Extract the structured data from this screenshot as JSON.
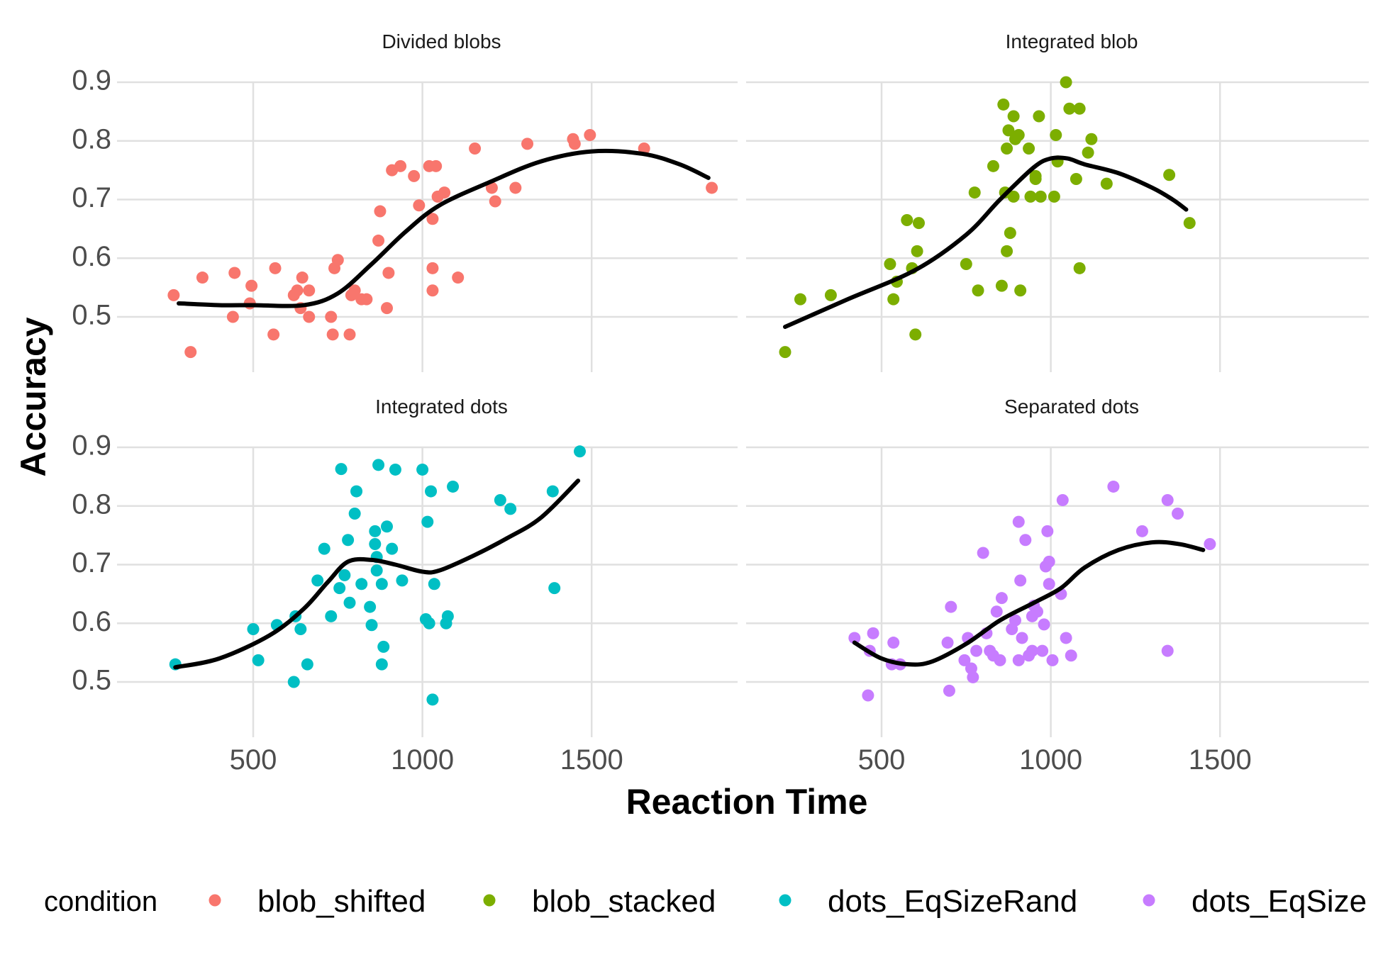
{
  "chart_data": {
    "type": "scatter",
    "xlabel": "Reaction Time",
    "ylabel": "Accuracy",
    "x_ticks": [
      500,
      1000,
      1500
    ],
    "y_ticks": [
      0.5,
      0.6,
      0.7,
      0.8,
      0.9
    ],
    "xlim": [
      100,
      2000
    ],
    "ylim": [
      0.42,
      0.93
    ],
    "grid": true,
    "legend_position": "bottom",
    "legend_title": "condition",
    "legend": [
      {
        "label": "blob_shifted",
        "color": "#F8766D"
      },
      {
        "label": "blob_stacked",
        "color": "#7CAE00"
      },
      {
        "label": "dots_EqSizeRand",
        "color": "#00BFC4"
      },
      {
        "label": "dots_EqSize",
        "color": "#C77CFF"
      }
    ],
    "panels": [
      {
        "title": "Divided blobs",
        "color": "#F8766D",
        "points": [
          [
            265,
            0.537
          ],
          [
            315,
            0.44
          ],
          [
            350,
            0.567
          ],
          [
            440,
            0.5
          ],
          [
            445,
            0.575
          ],
          [
            495,
            0.553
          ],
          [
            490,
            0.523
          ],
          [
            560,
            0.47
          ],
          [
            565,
            0.583
          ],
          [
            620,
            0.537
          ],
          [
            630,
            0.545
          ],
          [
            645,
            0.567
          ],
          [
            640,
            0.515
          ],
          [
            665,
            0.545
          ],
          [
            665,
            0.5
          ],
          [
            730,
            0.5
          ],
          [
            735,
            0.47
          ],
          [
            740,
            0.583
          ],
          [
            750,
            0.597
          ],
          [
            785,
            0.47
          ],
          [
            790,
            0.537
          ],
          [
            800,
            0.545
          ],
          [
            820,
            0.53
          ],
          [
            835,
            0.53
          ],
          [
            870,
            0.63
          ],
          [
            875,
            0.68
          ],
          [
            895,
            0.515
          ],
          [
            900,
            0.575
          ],
          [
            910,
            0.75
          ],
          [
            935,
            0.757
          ],
          [
            975,
            0.74
          ],
          [
            990,
            0.69
          ],
          [
            1020,
            0.757
          ],
          [
            1030,
            0.667
          ],
          [
            1030,
            0.583
          ],
          [
            1030,
            0.545
          ],
          [
            1040,
            0.757
          ],
          [
            1045,
            0.705
          ],
          [
            1065,
            0.712
          ],
          [
            1105,
            0.567
          ],
          [
            1155,
            0.787
          ],
          [
            1205,
            0.72
          ],
          [
            1215,
            0.697
          ],
          [
            1275,
            0.72
          ],
          [
            1310,
            0.795
          ],
          [
            1445,
            0.803
          ],
          [
            1450,
            0.795
          ],
          [
            1495,
            0.81
          ],
          [
            1655,
            0.787
          ],
          [
            1855,
            0.72
          ]
        ],
        "smooth": [
          [
            280,
            0.523
          ],
          [
            400,
            0.52
          ],
          [
            500,
            0.52
          ],
          [
            650,
            0.52
          ],
          [
            750,
            0.54
          ],
          [
            850,
            0.59
          ],
          [
            950,
            0.645
          ],
          [
            1050,
            0.69
          ],
          [
            1200,
            0.73
          ],
          [
            1350,
            0.765
          ],
          [
            1500,
            0.782
          ],
          [
            1650,
            0.778
          ],
          [
            1760,
            0.76
          ],
          [
            1845,
            0.737
          ]
        ]
      },
      {
        "title": "Integrated blob",
        "color": "#7CAE00",
        "points": [
          [
            215,
            0.44
          ],
          [
            260,
            0.53
          ],
          [
            350,
            0.537
          ],
          [
            525,
            0.59
          ],
          [
            535,
            0.53
          ],
          [
            545,
            0.56
          ],
          [
            575,
            0.665
          ],
          [
            590,
            0.583
          ],
          [
            600,
            0.47
          ],
          [
            605,
            0.612
          ],
          [
            610,
            0.66
          ],
          [
            750,
            0.59
          ],
          [
            775,
            0.712
          ],
          [
            785,
            0.545
          ],
          [
            830,
            0.757
          ],
          [
            855,
            0.553
          ],
          [
            860,
            0.862
          ],
          [
            865,
            0.712
          ],
          [
            870,
            0.612
          ],
          [
            870,
            0.787
          ],
          [
            875,
            0.818
          ],
          [
            880,
            0.643
          ],
          [
            890,
            0.705
          ],
          [
            890,
            0.842
          ],
          [
            895,
            0.803
          ],
          [
            905,
            0.81
          ],
          [
            910,
            0.545
          ],
          [
            935,
            0.787
          ],
          [
            940,
            0.705
          ],
          [
            955,
            0.735
          ],
          [
            955,
            0.74
          ],
          [
            965,
            0.842
          ],
          [
            970,
            0.705
          ],
          [
            1010,
            0.705
          ],
          [
            1015,
            0.81
          ],
          [
            1020,
            0.765
          ],
          [
            1045,
            0.9
          ],
          [
            1055,
            0.855
          ],
          [
            1075,
            0.735
          ],
          [
            1085,
            0.855
          ],
          [
            1085,
            0.583
          ],
          [
            1110,
            0.78
          ],
          [
            1120,
            0.803
          ],
          [
            1165,
            0.727
          ],
          [
            1350,
            0.742
          ],
          [
            1410,
            0.66
          ]
        ],
        "smooth": [
          [
            215,
            0.483
          ],
          [
            400,
            0.53
          ],
          [
            600,
            0.58
          ],
          [
            750,
            0.64
          ],
          [
            850,
            0.7
          ],
          [
            950,
            0.755
          ],
          [
            1000,
            0.77
          ],
          [
            1050,
            0.77
          ],
          [
            1100,
            0.76
          ],
          [
            1200,
            0.745
          ],
          [
            1300,
            0.72
          ],
          [
            1360,
            0.7
          ],
          [
            1400,
            0.683
          ]
        ]
      },
      {
        "title": "Integrated dots",
        "color": "#00BFC4",
        "points": [
          [
            270,
            0.53
          ],
          [
            500,
            0.59
          ],
          [
            515,
            0.537
          ],
          [
            570,
            0.597
          ],
          [
            620,
            0.5
          ],
          [
            625,
            0.612
          ],
          [
            640,
            0.59
          ],
          [
            660,
            0.53
          ],
          [
            690,
            0.673
          ],
          [
            710,
            0.727
          ],
          [
            730,
            0.612
          ],
          [
            755,
            0.66
          ],
          [
            760,
            0.863
          ],
          [
            770,
            0.682
          ],
          [
            780,
            0.742
          ],
          [
            785,
            0.635
          ],
          [
            800,
            0.787
          ],
          [
            805,
            0.825
          ],
          [
            820,
            0.667
          ],
          [
            845,
            0.628
          ],
          [
            850,
            0.597
          ],
          [
            860,
            0.757
          ],
          [
            860,
            0.735
          ],
          [
            865,
            0.713
          ],
          [
            865,
            0.69
          ],
          [
            870,
            0.87
          ],
          [
            880,
            0.667
          ],
          [
            880,
            0.53
          ],
          [
            885,
            0.56
          ],
          [
            895,
            0.765
          ],
          [
            910,
            0.727
          ],
          [
            920,
            0.862
          ],
          [
            940,
            0.673
          ],
          [
            1000,
            0.862
          ],
          [
            1010,
            0.607
          ],
          [
            1015,
            0.773
          ],
          [
            1020,
            0.6
          ],
          [
            1025,
            0.825
          ],
          [
            1030,
            0.47
          ],
          [
            1035,
            0.667
          ],
          [
            1070,
            0.6
          ],
          [
            1075,
            0.612
          ],
          [
            1090,
            0.833
          ],
          [
            1230,
            0.81
          ],
          [
            1260,
            0.795
          ],
          [
            1385,
            0.825
          ],
          [
            1390,
            0.66
          ],
          [
            1465,
            0.893
          ]
        ],
        "smooth": [
          [
            270,
            0.525
          ],
          [
            400,
            0.54
          ],
          [
            550,
            0.58
          ],
          [
            650,
            0.625
          ],
          [
            720,
            0.67
          ],
          [
            780,
            0.705
          ],
          [
            850,
            0.708
          ],
          [
            920,
            0.7
          ],
          [
            1000,
            0.688
          ],
          [
            1050,
            0.69
          ],
          [
            1150,
            0.715
          ],
          [
            1250,
            0.745
          ],
          [
            1350,
            0.78
          ],
          [
            1460,
            0.843
          ]
        ]
      },
      {
        "title": "Separated dots",
        "color": "#C77CFF",
        "points": [
          [
            420,
            0.575
          ],
          [
            460,
            0.477
          ],
          [
            465,
            0.553
          ],
          [
            475,
            0.583
          ],
          [
            530,
            0.53
          ],
          [
            535,
            0.567
          ],
          [
            555,
            0.53
          ],
          [
            695,
            0.567
          ],
          [
            700,
            0.485
          ],
          [
            705,
            0.628
          ],
          [
            745,
            0.537
          ],
          [
            755,
            0.575
          ],
          [
            765,
            0.523
          ],
          [
            770,
            0.508
          ],
          [
            780,
            0.553
          ],
          [
            800,
            0.72
          ],
          [
            810,
            0.583
          ],
          [
            820,
            0.553
          ],
          [
            830,
            0.545
          ],
          [
            840,
            0.62
          ],
          [
            850,
            0.537
          ],
          [
            855,
            0.643
          ],
          [
            885,
            0.59
          ],
          [
            895,
            0.605
          ],
          [
            905,
            0.773
          ],
          [
            905,
            0.537
          ],
          [
            910,
            0.673
          ],
          [
            915,
            0.575
          ],
          [
            925,
            0.742
          ],
          [
            935,
            0.545
          ],
          [
            945,
            0.612
          ],
          [
            945,
            0.553
          ],
          [
            950,
            0.63
          ],
          [
            960,
            0.62
          ],
          [
            975,
            0.553
          ],
          [
            980,
            0.598
          ],
          [
            985,
            0.697
          ],
          [
            990,
            0.757
          ],
          [
            995,
            0.667
          ],
          [
            995,
            0.705
          ],
          [
            1005,
            0.537
          ],
          [
            1030,
            0.65
          ],
          [
            1035,
            0.81
          ],
          [
            1045,
            0.575
          ],
          [
            1060,
            0.545
          ],
          [
            1185,
            0.833
          ],
          [
            1270,
            0.757
          ],
          [
            1345,
            0.81
          ],
          [
            1345,
            0.553
          ],
          [
            1375,
            0.787
          ],
          [
            1470,
            0.735
          ]
        ],
        "smooth": [
          [
            420,
            0.567
          ],
          [
            500,
            0.54
          ],
          [
            580,
            0.53
          ],
          [
            650,
            0.535
          ],
          [
            750,
            0.565
          ],
          [
            850,
            0.605
          ],
          [
            950,
            0.635
          ],
          [
            1030,
            0.66
          ],
          [
            1100,
            0.695
          ],
          [
            1200,
            0.725
          ],
          [
            1300,
            0.738
          ],
          [
            1380,
            0.735
          ],
          [
            1450,
            0.725
          ]
        ]
      }
    ]
  }
}
